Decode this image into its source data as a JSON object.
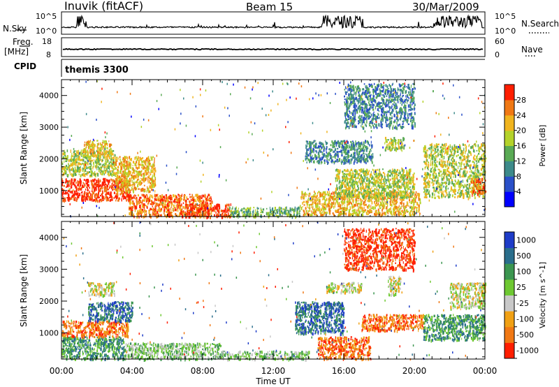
{
  "header": {
    "station": "Inuvik (fitACF)",
    "beam": "Beam 15",
    "date": "30/Mar/2009"
  },
  "top_panels": {
    "nsky_label": "N.Sky",
    "nsky_ticks": [
      "10^5",
      "10^0"
    ],
    "nsearch_label": "N.Search",
    "nsearch_ticks": [
      "10^5",
      "10^0"
    ],
    "freq_label": "Freq.",
    "freq_unit": "[MHz]",
    "freq_ticks": [
      "18",
      "8"
    ],
    "nave_label": "Nave",
    "nave_ticks": [
      "60",
      "0"
    ],
    "cpid_label": "CPID",
    "cpid_value": "themis 3300"
  },
  "chart_data": [
    {
      "type": "heatmap",
      "name": "power",
      "ylabel": "Slant Range [km]",
      "xlabel": "Time UT",
      "ylim": [
        180,
        4500
      ],
      "xlim": [
        0,
        24
      ],
      "y_ticks": [
        "1000",
        "2000",
        "3000",
        "4000"
      ],
      "x_ticks": [
        "00:00",
        "04:00",
        "08:00",
        "12:00",
        "16:00",
        "20:00",
        "00:00"
      ],
      "colorbar": {
        "label": "Power [dB]",
        "ticks": [
          "4",
          "8",
          "12",
          "16",
          "20",
          "24",
          "28"
        ],
        "colors": [
          "#0000ff",
          "#2a50c8",
          "#3d8a8a",
          "#5aaa55",
          "#b4d22a",
          "#f0b41e",
          "#f07814",
          "#ff1e00"
        ]
      },
      "regions": [
        {
          "t0": 0.0,
          "t1": 3.9,
          "r0": 700,
          "r1": 1400,
          "level": 7
        },
        {
          "t0": 0.0,
          "t1": 3.0,
          "r0": 1500,
          "r1": 2300,
          "level": 4
        },
        {
          "t0": 1.2,
          "t1": 2.8,
          "r0": 2100,
          "r1": 2600,
          "level": 5
        },
        {
          "t0": 3.0,
          "t1": 5.3,
          "r0": 1000,
          "r1": 2100,
          "level": 5
        },
        {
          "t0": 3.8,
          "t1": 8.5,
          "r0": 200,
          "r1": 900,
          "level": 6
        },
        {
          "t0": 7.0,
          "t1": 9.6,
          "r0": 200,
          "r1": 600,
          "level": 7
        },
        {
          "t0": 9.5,
          "t1": 13.5,
          "r0": 200,
          "r1": 500,
          "level": 3
        },
        {
          "t0": 13.5,
          "t1": 20.3,
          "r0": 250,
          "r1": 1000,
          "level": 5
        },
        {
          "t0": 15.5,
          "t1": 20.0,
          "r0": 800,
          "r1": 1700,
          "level": 4
        },
        {
          "t0": 13.8,
          "t1": 17.6,
          "r0": 1900,
          "r1": 2600,
          "level": 2
        },
        {
          "t0": 16.0,
          "t1": 20.0,
          "r0": 3000,
          "r1": 4400,
          "level": 2
        },
        {
          "t0": 18.3,
          "t1": 19.4,
          "r0": 2300,
          "r1": 2700,
          "level": 4
        },
        {
          "t0": 20.5,
          "t1": 24.0,
          "r0": 800,
          "r1": 2500,
          "level": 4
        },
        {
          "t0": 23.2,
          "t1": 24.0,
          "r0": 900,
          "r1": 1400,
          "level": 6
        }
      ]
    },
    {
      "type": "heatmap",
      "name": "velocity",
      "ylabel": "Slant Range [km]",
      "xlabel": "Time UT",
      "ylim": [
        180,
        4500
      ],
      "xlim": [
        0,
        24
      ],
      "y_ticks": [
        "1000",
        "2000",
        "3000",
        "4000"
      ],
      "x_ticks": [
        "00:00",
        "04:00",
        "08:00",
        "12:00",
        "16:00",
        "20:00",
        "00:00"
      ],
      "colorbar": {
        "label": "Velocity [m s^-1]",
        "ticks": [
          "1000",
          "500",
          "100",
          "25",
          "-25",
          "-100",
          "-500",
          "-1000"
        ],
        "colors": [
          "#1e3cc8",
          "#2a6e8c",
          "#3c9650",
          "#6ec832",
          "#c8c8c8",
          "#f0a014",
          "#f07814",
          "#ff1e00"
        ]
      },
      "regions": [
        {
          "t0": 0.0,
          "t1": 3.5,
          "r0": 200,
          "r1": 900,
          "level": 2
        },
        {
          "t0": 0.0,
          "t1": 3.8,
          "r0": 900,
          "r1": 1400,
          "level": 6
        },
        {
          "t0": 1.5,
          "t1": 4.0,
          "r0": 1400,
          "r1": 2000,
          "level": 1
        },
        {
          "t0": 1.5,
          "t1": 3.0,
          "r0": 2200,
          "r1": 2600,
          "level": 4
        },
        {
          "t0": 3.5,
          "t1": 9.0,
          "r0": 200,
          "r1": 700,
          "level": 3
        },
        {
          "t0": 9.0,
          "t1": 14.0,
          "r0": 200,
          "r1": 450,
          "level": 3
        },
        {
          "t0": 13.2,
          "t1": 16.0,
          "r0": 1000,
          "r1": 2000,
          "level": 1
        },
        {
          "t0": 14.5,
          "t1": 17.5,
          "r0": 200,
          "r1": 900,
          "level": 6
        },
        {
          "t0": 15.0,
          "t1": 17.0,
          "r0": 2300,
          "r1": 2600,
          "level": 4
        },
        {
          "t0": 17.0,
          "t1": 20.5,
          "r0": 1100,
          "r1": 1600,
          "level": 6
        },
        {
          "t0": 18.5,
          "t1": 19.2,
          "r0": 2200,
          "r1": 2800,
          "level": 4
        },
        {
          "t0": 20.5,
          "t1": 24.0,
          "r0": 800,
          "r1": 1600,
          "level": 2
        },
        {
          "t0": 22.0,
          "t1": 24.0,
          "r0": 1800,
          "r1": 2600,
          "level": 4
        },
        {
          "t0": 16.0,
          "t1": 20.0,
          "r0": 3000,
          "r1": 4300,
          "level": 7
        }
      ]
    }
  ]
}
